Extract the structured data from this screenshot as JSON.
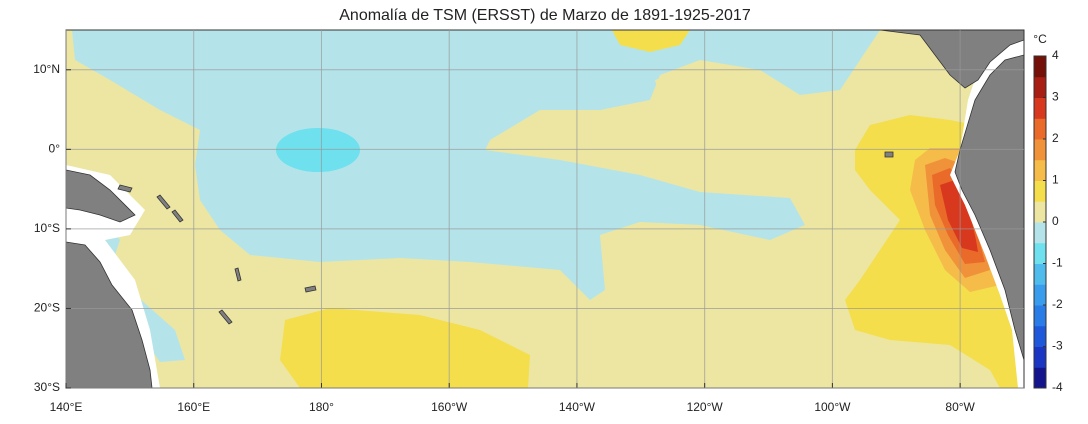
{
  "title": "Anomalía de TSM (ERSST) de Marzo de 1891-1925-2017",
  "map": {
    "xlim": [
      140,
      290
    ],
    "ylim": [
      -30,
      15
    ],
    "xticks": [
      {
        "value": 140,
        "label": "140°E"
      },
      {
        "value": 160,
        "label": "160°E"
      },
      {
        "value": 180,
        "label": "180°"
      },
      {
        "value": 200,
        "label": "160°W"
      },
      {
        "value": 220,
        "label": "140°W"
      },
      {
        "value": 240,
        "label": "120°W"
      },
      {
        "value": 260,
        "label": "100°W"
      },
      {
        "value": 280,
        "label": "80°W"
      }
    ],
    "yticks": [
      {
        "value": 10,
        "label": "10°N"
      },
      {
        "value": 0,
        "label": "0°"
      },
      {
        "value": -10,
        "label": "10°S"
      },
      {
        "value": -20,
        "label": "20°S"
      },
      {
        "value": -30,
        "label": "30°S"
      }
    ],
    "grid": true
  },
  "colorbar": {
    "unit": "°C",
    "lim": [
      -4,
      4
    ],
    "ticks": [
      4,
      3,
      2,
      1,
      0,
      -1,
      -2,
      -3,
      -4
    ],
    "colors": [
      "#14148c",
      "#1c36c4",
      "#2058dc",
      "#2a7ce6",
      "#3a9cec",
      "#50bcee",
      "#6ee0ee",
      "#b4e4ea",
      "#ece6a2",
      "#f4de4c",
      "#f5bc4a",
      "#f0923a",
      "#ea6a2a",
      "#d8381e",
      "#a81e14",
      "#741008"
    ]
  }
}
